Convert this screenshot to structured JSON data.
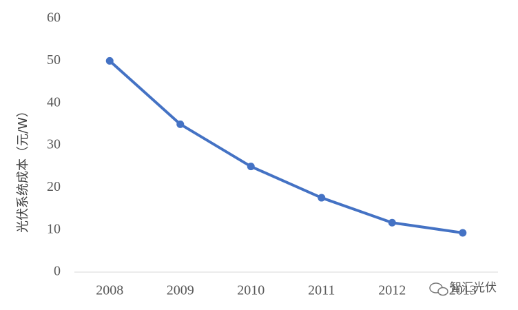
{
  "chart_data": {
    "type": "line",
    "y_label": "光伏系统成本（元/W）",
    "categories": [
      "2008",
      "2009",
      "2010",
      "2011",
      "2012",
      "2013"
    ],
    "series": [
      {
        "name": "光伏系统成本",
        "color": "#4472c4",
        "values": [
          50,
          35,
          25,
          17.6,
          11.7,
          9.3
        ]
      }
    ],
    "ylim": [
      0,
      60
    ],
    "yticks": [
      0,
      10,
      20,
      30,
      40,
      50,
      60
    ],
    "grid": false
  },
  "watermark": "智汇光伏"
}
